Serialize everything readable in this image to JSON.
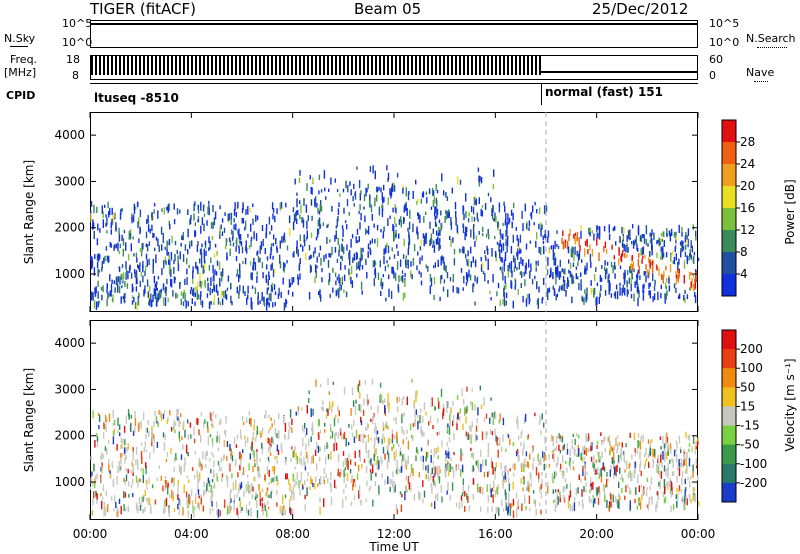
{
  "header": {
    "radar": "TIGER (fitACF)",
    "beam": "Beam 05",
    "date": "25/Dec/2012"
  },
  "left_labels": {
    "nsky": "N.Sky",
    "freq": "Freq.",
    "freq_unit": "[MHz]",
    "cpid": "CPID"
  },
  "right_labels": {
    "nsearch": "N.Search",
    "nave": "Nave"
  },
  "noise_ticks_left": [
    "10^5",
    "10^0"
  ],
  "noise_ticks_right": [
    "10^5",
    "10^0"
  ],
  "freq_ticks": [
    "18",
    "8"
  ],
  "nave_ticks": [
    "60",
    "0"
  ],
  "cpid_segments": [
    "ltuseq -8510",
    "normal (fast) 151"
  ],
  "chart_data": [
    {
      "type": "heatmap",
      "title": "",
      "xlabel": "",
      "ylabel": "Slant Range [km]",
      "x_ticks": [
        "00:00",
        "04:00",
        "08:00",
        "12:00",
        "16:00",
        "20:00",
        "00:00"
      ],
      "y_ticks": [
        1000,
        2000,
        3000,
        4000
      ],
      "ylim": [
        180,
        4500
      ],
      "colorbar": {
        "label": "Power [dB]",
        "ticks": [
          4,
          8,
          12,
          16,
          20,
          24,
          28
        ],
        "colors": [
          "#1030e0",
          "#204ea0",
          "#3a8a5a",
          "#7ac03a",
          "#e8e020",
          "#f0a020",
          "#f06010",
          "#e01010"
        ]
      },
      "mode_change_time": "18:00"
    },
    {
      "type": "heatmap",
      "title": "",
      "xlabel": "Time UT",
      "ylabel": "Slant Range [km]",
      "x_ticks": [
        "00:00",
        "04:00",
        "08:00",
        "12:00",
        "16:00",
        "20:00",
        "00:00"
      ],
      "y_ticks": [
        1000,
        2000,
        3000,
        4000
      ],
      "ylim": [
        180,
        4500
      ],
      "colorbar": {
        "label": "Velocity [m s⁻¹]",
        "ticks": [
          200,
          100,
          50,
          15,
          -15,
          -50,
          -100,
          -200
        ],
        "colors": [
          "#1a3cc8",
          "#2a7a6a",
          "#3a9a4a",
          "#7ad040",
          "#c8c8c0",
          "#f0c020",
          "#f08a10",
          "#e84010",
          "#e01010"
        ]
      },
      "mode_change_time": "18:00"
    }
  ]
}
